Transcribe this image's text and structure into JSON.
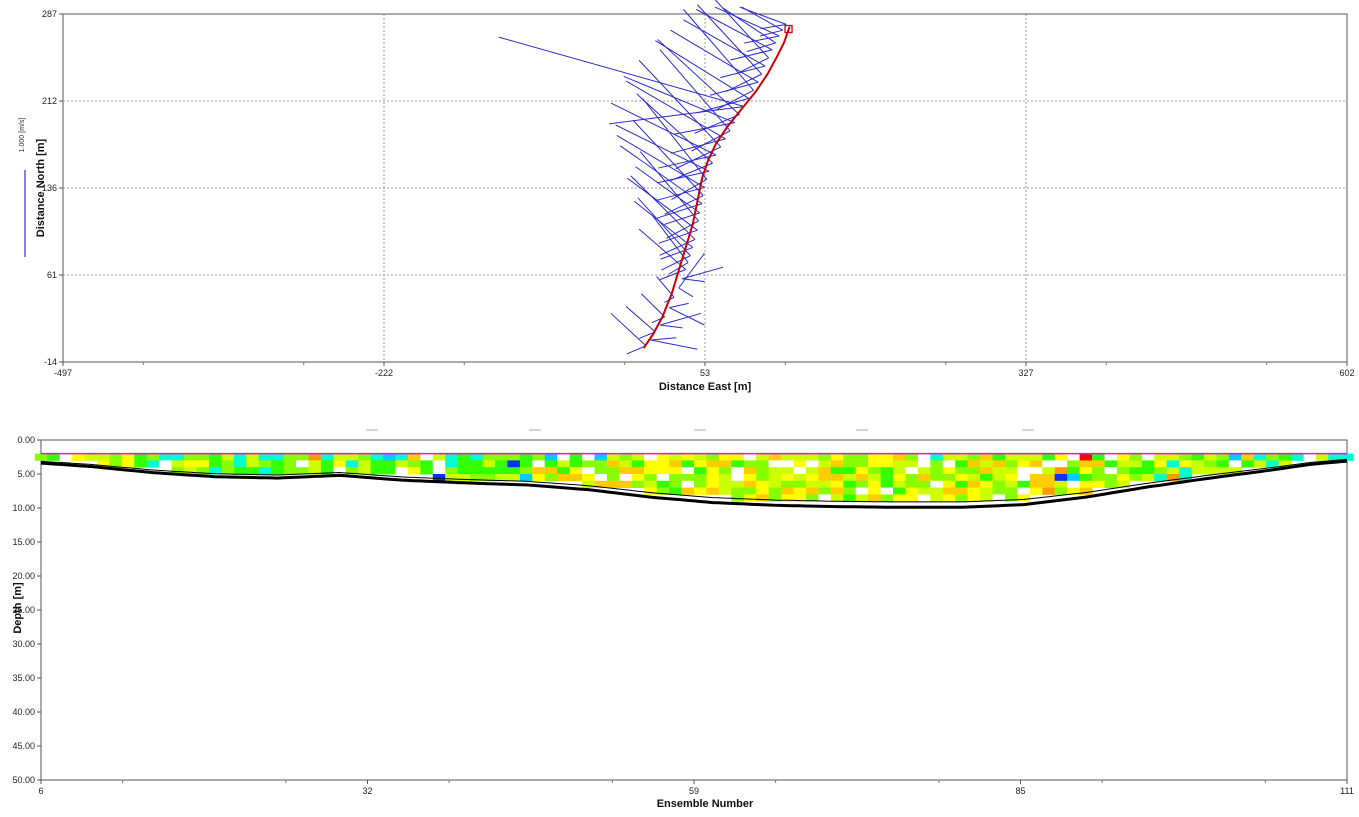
{
  "chart_data": [
    {
      "type": "scatter",
      "subtype": "ship-track-with-velocity-sticks",
      "xlabel": "Distance East [m]",
      "ylabel": "Distance North [m]",
      "xlim": [
        -497,
        602
      ],
      "ylim": [
        -14,
        287
      ],
      "x_ticks": [
        "-497",
        "-222",
        "53",
        "327",
        "602"
      ],
      "y_ticks": [
        "-14",
        "61",
        "136",
        "212",
        "287"
      ],
      "grid": true,
      "scale_legend": {
        "label": "1.000 [m/s]",
        "color": "#3333cc",
        "placement": "left"
      },
      "track_color": "#cc0000",
      "stick_color": "#2a2ad0",
      "track": {
        "x": [
          0,
          8,
          16,
          24,
          30,
          36,
          42,
          46,
          50,
          55,
          62,
          72,
          84,
          96,
          106,
          114,
          120,
          125
        ],
        "y": [
          -2,
          10,
          25,
          45,
          65,
          85,
          105,
          125,
          145,
          160,
          175,
          190,
          205,
          220,
          235,
          250,
          262,
          276
        ]
      },
      "end_marker": {
        "x": 124,
        "y": 274
      },
      "sticks": [
        {
          "x": 2,
          "y": 0,
          "dx": -30,
          "dy": 28
        },
        {
          "x": 6,
          "y": 5,
          "dx": 40,
          "dy": -8
        },
        {
          "x": 10,
          "y": 12,
          "dx": -25,
          "dy": 22
        },
        {
          "x": 14,
          "y": 18,
          "dx": 35,
          "dy": 10
        },
        {
          "x": 18,
          "y": 25,
          "dx": -20,
          "dy": 20
        },
        {
          "x": 22,
          "y": 33,
          "dx": 30,
          "dy": -15
        },
        {
          "x": 26,
          "y": 42,
          "dx": -15,
          "dy": 18
        },
        {
          "x": 30,
          "y": 50,
          "dx": 22,
          "dy": 30
        },
        {
          "x": 33,
          "y": 58,
          "dx": 35,
          "dy": 10
        },
        {
          "x": 36,
          "y": 66,
          "dx": -40,
          "dy": 35
        },
        {
          "x": 38,
          "y": 72,
          "dx": -30,
          "dy": 40
        },
        {
          "x": 40,
          "y": 78,
          "dx": -45,
          "dy": 50
        },
        {
          "x": 42,
          "y": 85,
          "dx": -50,
          "dy": 40
        },
        {
          "x": 44,
          "y": 92,
          "dx": -55,
          "dy": 55
        },
        {
          "x": 46,
          "y": 100,
          "dx": -60,
          "dy": 45
        },
        {
          "x": 47,
          "y": 108,
          "dx": -50,
          "dy": 60
        },
        {
          "x": 48,
          "y": 115,
          "dx": -55,
          "dy": 40
        },
        {
          "x": 50,
          "y": 123,
          "dx": -70,
          "dy": 50
        },
        {
          "x": 51,
          "y": 130,
          "dx": -60,
          "dy": 65
        },
        {
          "x": 52,
          "y": 137,
          "dx": -75,
          "dy": 45
        },
        {
          "x": 54,
          "y": 144,
          "dx": -55,
          "dy": 70
        },
        {
          "x": 56,
          "y": 151,
          "dx": -80,
          "dy": 40
        },
        {
          "x": 59,
          "y": 158,
          "dx": -65,
          "dy": 60
        },
        {
          "x": 62,
          "y": 165,
          "dx": -90,
          "dy": 45
        },
        {
          "x": 66,
          "y": 172,
          "dx": -70,
          "dy": 75
        },
        {
          "x": 70,
          "y": 179,
          "dx": -85,
          "dy": 50
        },
        {
          "x": 74,
          "y": 186,
          "dx": -60,
          "dy": 70
        },
        {
          "x": 78,
          "y": 193,
          "dx": -95,
          "dy": 40
        },
        {
          "x": 82,
          "y": 200,
          "dx": -70,
          "dy": 65
        },
        {
          "x": 86,
          "y": 207,
          "dx": -210,
          "dy": 60
        },
        {
          "x": 90,
          "y": 214,
          "dx": -80,
          "dy": 50
        },
        {
          "x": 94,
          "y": 221,
          "dx": -60,
          "dy": 70
        },
        {
          "x": 98,
          "y": 228,
          "dx": -75,
          "dy": 45
        },
        {
          "x": 101,
          "y": 235,
          "dx": -55,
          "dy": 60
        },
        {
          "x": 104,
          "y": 242,
          "dx": -70,
          "dy": 40
        },
        {
          "x": 107,
          "y": 249,
          "dx": -50,
          "dy": 55
        },
        {
          "x": 110,
          "y": 256,
          "dx": -65,
          "dy": 35
        },
        {
          "x": 113,
          "y": 262,
          "dx": -45,
          "dy": 30
        },
        {
          "x": 116,
          "y": 268,
          "dx": -55,
          "dy": 25
        },
        {
          "x": 119,
          "y": 273,
          "dx": -35,
          "dy": 20
        },
        {
          "x": 122,
          "y": 278,
          "dx": -40,
          "dy": 15
        }
      ]
    },
    {
      "type": "heatmap",
      "subtype": "velocity-contour-cross-section",
      "xlabel": "Ensemble Number",
      "ylabel": "Depth [m]",
      "xlim": [
        6,
        111
      ],
      "ylim": [
        50,
        0
      ],
      "x_ticks": [
        "6",
        "32",
        "59",
        "85",
        "111"
      ],
      "y_ticks": [
        "0.00",
        "5.00",
        "10.00",
        "15.00",
        "20.00",
        "25.00",
        "30.00",
        "35.00",
        "40.00",
        "45.00",
        "50.00"
      ],
      "cell_depth_m": 1.0,
      "first_cell_depth_m": 2.0,
      "water_surface_color": "#ff00ff",
      "bottom_color": "#000000",
      "bottom_depth": {
        "ensemble": [
          6,
          10,
          15,
          20,
          25,
          30,
          35,
          40,
          45,
          50,
          55,
          60,
          65,
          70,
          75,
          80,
          85,
          90,
          95,
          100,
          105,
          108,
          111
        ],
        "depth": [
          3.4,
          3.9,
          4.8,
          5.4,
          5.6,
          5.2,
          5.9,
          6.3,
          6.6,
          7.3,
          8.4,
          9.2,
          9.6,
          9.8,
          9.9,
          9.9,
          9.5,
          8.4,
          6.9,
          5.6,
          4.4,
          3.6,
          3.1
        ]
      },
      "palette": [
        "#0033ff",
        "#00ccff",
        "#00ffcc",
        "#33ff00",
        "#88ff00",
        "#ccff00",
        "#ffff00",
        "#ffcc00",
        "#ff9900",
        "#ff0000"
      ],
      "missing_color": "#ffffff",
      "seed": 17
    }
  ]
}
